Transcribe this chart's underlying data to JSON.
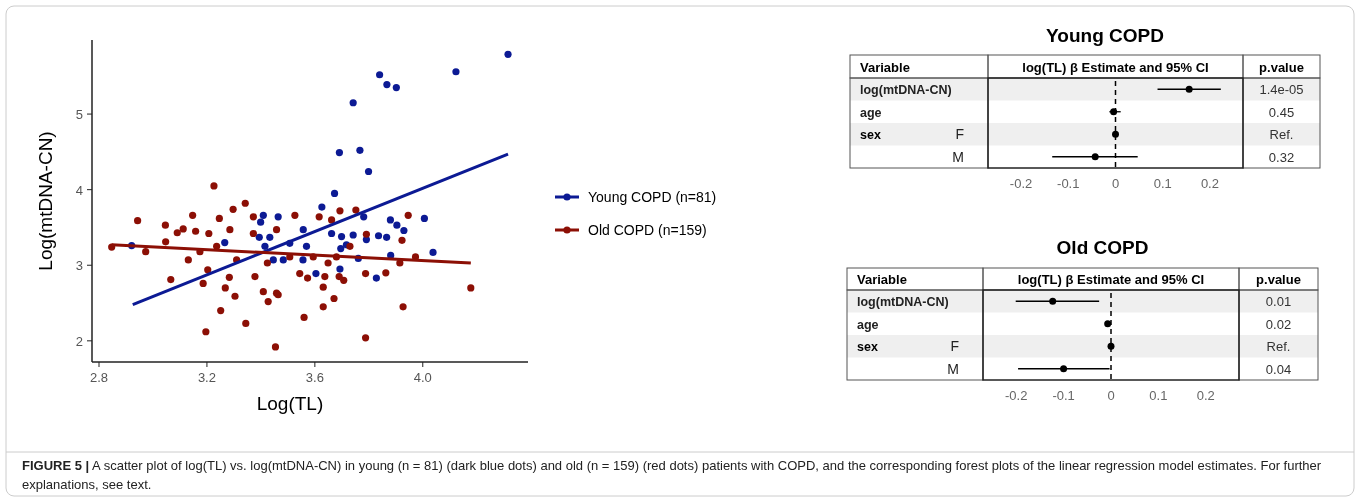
{
  "chart_data": [
    {
      "type": "scatter",
      "xlabel": "Log(TL)",
      "ylabel": "Log(mtDNA-CN)",
      "xlim": [
        2.774,
        4.39
      ],
      "ylim": [
        1.72,
        5.98
      ],
      "xticks": [
        2.8,
        3.2,
        3.6,
        {
          "value": 4,
          "label": "4.0"
        }
      ],
      "yticks": [
        2,
        3,
        4,
        5
      ],
      "legend": "right",
      "marker": "circle",
      "grid": false,
      "series": [
        {
          "name": "Young COPD (n=81)",
          "color": "#0c1a94",
          "x": [
            4.316,
            4.123,
            3.84,
            3.867,
            3.902,
            3.742,
            3.691,
            3.767,
            3.799,
            3.673,
            3.626,
            4.006,
            3.88,
            3.904,
            3.93,
            4.038,
            3.828,
            3.604,
            3.761,
            3.881,
            3.836,
            3.866,
            3.791,
            3.742,
            3.781,
            3.693,
            3.696,
            3.557,
            3.507,
            3.569,
            3.483,
            3.662,
            3.699,
            3.717,
            3.556,
            2.921,
            3.266,
            3.409,
            3.399,
            3.394,
            3.433,
            3.415,
            3.446,
            3.464
          ],
          "values": [
            5.79,
            5.56,
            5.52,
            5.39,
            5.35,
            5.15,
            4.49,
            4.52,
            4.24,
            3.95,
            3.77,
            3.62,
            3.6,
            3.53,
            3.46,
            3.17,
            2.83,
            2.89,
            3.09,
            3.13,
            3.39,
            3.37,
            3.34,
            3.4,
            3.64,
            2.95,
            3.22,
            3.47,
            3.29,
            3.25,
            3.07,
            3.42,
            3.38,
            3.27,
            3.07,
            3.26,
            3.3,
            3.66,
            3.57,
            3.37,
            3.37,
            3.25,
            3.07,
            3.64
          ]
        },
        {
          "name": "Old COPD (n=159)",
          "color": "#8c0f05",
          "x": [
            2.847,
            2.943,
            2.973,
            3.046,
            3.047,
            3.066,
            3.09,
            3.112,
            3.131,
            3.147,
            3.158,
            3.174,
            3.186,
            3.196,
            3.203,
            3.207,
            3.226,
            3.236,
            3.251,
            3.246,
            3.268,
            3.283,
            3.285,
            3.297,
            3.304,
            3.31,
            3.344,
            3.342,
            3.372,
            3.378,
            3.372,
            3.409,
            3.427,
            3.424,
            3.454,
            3.458,
            3.464,
            3.458,
            3.507,
            3.526,
            3.544,
            3.56,
            3.573,
            3.616,
            3.631,
            3.631,
            3.637,
            3.649,
            3.662,
            3.671,
            3.69,
            3.693,
            3.707,
            3.73,
            3.752,
            3.788,
            3.788,
            3.791,
            3.863,
            3.915,
            3.923,
            3.927,
            3.946,
            3.973,
            4.178,
            3.594,
            3.68
          ],
          "values": [
            3.24,
            3.59,
            3.18,
            3.53,
            3.31,
            2.81,
            3.43,
            3.48,
            3.07,
            3.66,
            3.45,
            3.18,
            2.76,
            2.12,
            2.94,
            3.42,
            4.05,
            3.25,
            2.4,
            3.62,
            2.7,
            2.84,
            3.47,
            3.74,
            2.59,
            3.07,
            2.23,
            3.82,
            3.64,
            2.85,
            3.42,
            2.65,
            2.52,
            3.03,
            1.92,
            2.63,
            2.61,
            3.47,
            3.11,
            3.66,
            2.89,
            2.31,
            2.83,
            3.64,
            2.71,
            2.45,
            2.85,
            3.03,
            3.6,
            2.56,
            2.85,
            3.72,
            2.8,
            3.25,
            3.73,
            2.89,
            2.04,
            3.41,
            2.9,
            3.03,
            3.33,
            2.45,
            3.66,
            3.11,
            2.7,
            3.11,
            3.11
          ]
        },
        {
          "type": "line",
          "marker": "none",
          "color": "#0c1a94",
          "x": [
            2.925,
            4.316
          ],
          "values": [
            2.48,
            4.47
          ]
        },
        {
          "type": "line",
          "marker": "none",
          "color": "#8c0f05",
          "x": [
            2.847,
            4.178
          ],
          "values": [
            3.27,
            3.03
          ]
        }
      ],
      "annotations": [
        "FIGURE 5 | A scatter plot of log(TL) vs. log(mtDNA-CN) in young (n = 81) (dark blue dots) and old (n = 159) (red dots) patients with COPD, and the corresponding forest plots of the linear regression model estimates. For further explanations, see text."
      ]
    },
    {
      "type": "scatter",
      "title": "Young COPD",
      "orientation": "horizontal",
      "marker": "circle",
      "color": "#000000",
      "categories": [
        "log(mtDNA-CN)",
        "age",
        "F",
        "M"
      ],
      "values": [
        0.156,
        -0.004,
        0,
        -0.043
      ],
      "errors": [
        [
          0.089,
          0.223
        ],
        [
          -0.013,
          0.011
        ],
        null,
        [
          -0.134,
          0.047
        ]
      ],
      "xlabel": "log(TL) β Estimate and 95% CI",
      "xlim": [
        -0.27,
        0.27
      ],
      "xticks": [
        -0.2,
        -0.1,
        0,
        0.1,
        0.2
      ],
      "ref_lines": [
        {
          "axis": "x",
          "value": 0,
          "line_style": "dashed"
        }
      ],
      "annotations": [
        "Variable",
        "p.value",
        "sex",
        "1.4e-05",
        "0.45",
        "Ref.",
        "0.32"
      ]
    },
    {
      "type": "scatter",
      "title": "Old COPD",
      "orientation": "horizontal",
      "marker": "circle",
      "color": "#000000",
      "categories": [
        "log(mtDNA-CN)",
        "age",
        "F",
        "M"
      ],
      "values": [
        -0.123,
        -0.007,
        0,
        -0.1
      ],
      "errors": [
        [
          -0.201,
          -0.025
        ],
        null,
        null,
        [
          -0.196,
          -0.003
        ]
      ],
      "xlabel": "log(TL) β Estimate and 95% CI",
      "xlim": [
        -0.27,
        0.27
      ],
      "xticks": [
        -0.2,
        -0.1,
        0,
        0.1,
        0.2
      ],
      "ref_lines": [
        {
          "axis": "x",
          "value": 0,
          "line_style": "dashed"
        }
      ],
      "annotations": [
        "Variable",
        "p.value",
        "sex",
        "0.01",
        "0.02",
        "Ref.",
        "0.04"
      ]
    }
  ]
}
